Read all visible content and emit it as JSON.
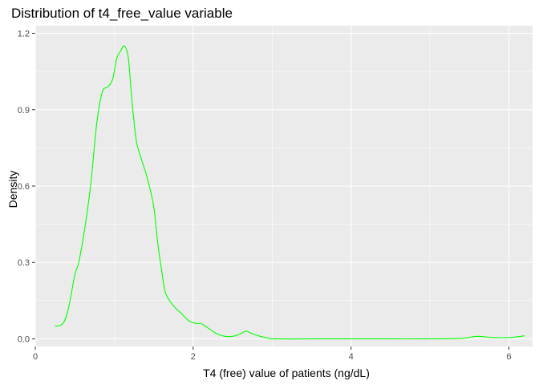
{
  "chart_data": {
    "type": "line",
    "title": "Distribution of t4_free_value variable",
    "xlabel": "T4 (free) value of patients (ng/dL)",
    "ylabel": "Density",
    "xlim": [
      0.0,
      6.3
    ],
    "ylim": [
      -0.03,
      1.23
    ],
    "x_ticks": [
      0,
      2,
      4,
      6
    ],
    "y_ticks": [
      0.0,
      0.3,
      0.6,
      0.9,
      1.2
    ],
    "x_tick_labels": [
      "0",
      "2",
      "4",
      "6"
    ],
    "y_tick_labels": [
      "0.0",
      "0.3",
      "0.6",
      "0.9",
      "1.2"
    ],
    "grid": true,
    "series": [
      {
        "line_color": "#00ff00",
        "x": [
          0.25,
          0.35,
          0.42,
          0.5,
          0.55,
          0.62,
          0.7,
          0.78,
          0.85,
          0.92,
          0.98,
          1.03,
          1.08,
          1.13,
          1.18,
          1.22,
          1.27,
          1.3,
          1.35,
          1.42,
          1.5,
          1.55,
          1.6,
          1.65,
          1.75,
          1.85,
          1.95,
          2.05,
          2.1,
          2.2,
          2.3,
          2.4,
          2.5,
          2.6,
          2.67,
          2.75,
          2.85,
          2.95,
          3.05,
          3.5,
          4.0,
          4.5,
          5.0,
          5.4,
          5.6,
          5.8,
          6.0,
          6.2
        ],
        "y": [
          0.05,
          0.06,
          0.12,
          0.25,
          0.3,
          0.42,
          0.6,
          0.85,
          0.97,
          0.99,
          1.02,
          1.1,
          1.13,
          1.15,
          1.1,
          0.95,
          0.8,
          0.75,
          0.7,
          0.63,
          0.52,
          0.38,
          0.27,
          0.18,
          0.13,
          0.1,
          0.07,
          0.06,
          0.06,
          0.04,
          0.02,
          0.01,
          0.01,
          0.02,
          0.03,
          0.02,
          0.01,
          0.003,
          0.0,
          0.0,
          0.0,
          0.0,
          0.0,
          0.002,
          0.01,
          0.005,
          0.005,
          0.012
        ]
      }
    ]
  },
  "colors": {
    "panel_background": "#ebebeb",
    "grid": "#ffffff",
    "line": "#00ff00"
  }
}
